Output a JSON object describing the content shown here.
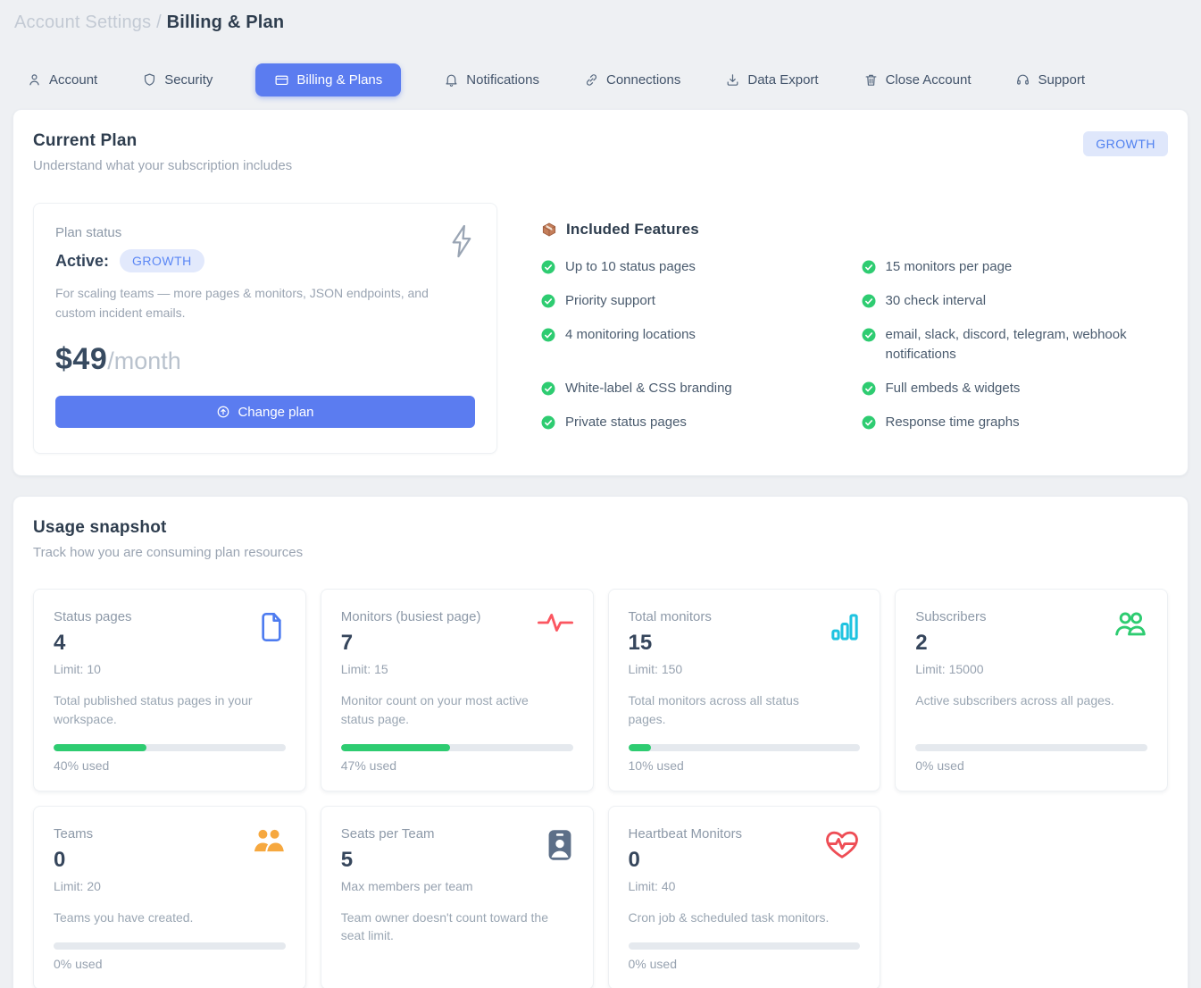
{
  "breadcrumb": {
    "section": "Account Settings",
    "separator": "/",
    "page": "Billing & Plan"
  },
  "tabs": [
    {
      "label": "Account",
      "active": false
    },
    {
      "label": "Security",
      "active": false
    },
    {
      "label": "Billing & Plans",
      "active": true
    },
    {
      "label": "Notifications",
      "active": false
    },
    {
      "label": "Connections",
      "active": false
    },
    {
      "label": "Data Export",
      "active": false
    },
    {
      "label": "Close Account",
      "active": false
    },
    {
      "label": "Support",
      "active": false
    }
  ],
  "current_plan": {
    "title": "Current Plan",
    "subtitle": "Understand what your subscription includes",
    "plan_badge": "GROWTH",
    "status_card": {
      "label": "Plan status",
      "status_text": "Active:",
      "plan_name": "GROWTH",
      "description": "For scaling teams — more pages & monitors, JSON endpoints, and custom incident emails.",
      "price": "$49",
      "period": "/month",
      "change_button_label": "Change plan"
    },
    "features": {
      "heading": "Included Features",
      "items": [
        "Up to 10 status pages",
        "15 monitors per page",
        "Priority support",
        "30 check interval",
        "4 monitoring locations",
        "email, slack, discord, telegram, webhook notifications",
        "White-label & CSS branding",
        "Full embeds & widgets",
        "Private status pages",
        "Response time graphs"
      ]
    }
  },
  "usage": {
    "title": "Usage snapshot",
    "subtitle": "Track how you are consuming plan resources",
    "cards": [
      {
        "label": "Status pages",
        "value": "4",
        "limit": "Limit: 10",
        "description": "Total published status pages in your workspace.",
        "percent": 40,
        "percent_label": "40% used",
        "icon": "document-icon"
      },
      {
        "label": "Monitors (busiest page)",
        "value": "7",
        "limit": "Limit: 15",
        "description": "Monitor count on your most active status page.",
        "percent": 47,
        "percent_label": "47% used",
        "icon": "activity-icon"
      },
      {
        "label": "Total monitors",
        "value": "15",
        "limit": "Limit: 150",
        "description": "Total monitors across all status pages.",
        "percent": 10,
        "percent_label": "10% used",
        "icon": "bar-chart-icon"
      },
      {
        "label": "Subscribers",
        "value": "2",
        "limit": "Limit: 15000",
        "description": "Active subscribers across all pages.",
        "percent": 0,
        "percent_label": "0% used",
        "icon": "users-icon"
      },
      {
        "label": "Teams",
        "value": "0",
        "limit": "Limit: 20",
        "description": "Teams you have created.",
        "percent": 0,
        "percent_label": "0% used",
        "icon": "team-icon"
      },
      {
        "label": "Seats per Team",
        "value": "5",
        "limit": "Max members per team",
        "description": "Team owner doesn't count toward the seat limit.",
        "percent": null,
        "percent_label": "",
        "icon": "id-badge-icon"
      },
      {
        "label": "Heartbeat Monitors",
        "value": "0",
        "limit": "Limit: 40",
        "description": "Cron job & scheduled task monitors.",
        "percent": 0,
        "percent_label": "0% used",
        "icon": "heart-pulse-icon"
      }
    ]
  },
  "colors": {
    "accent_blue": "#5b7cf0",
    "badge_bg": "#dfe7fb",
    "badge_text": "#4f80f0",
    "success_green": "#2ecc71",
    "progress_track": "#e5e9ee",
    "icon_document": "#4e7cf0",
    "icon_activity": "#fb5660",
    "icon_bars": "#1fc3e0",
    "icon_users": "#2ecc71",
    "icon_team": "#f6a83f",
    "icon_badge": "#5d6f88",
    "icon_heart": "#ee4d55"
  }
}
